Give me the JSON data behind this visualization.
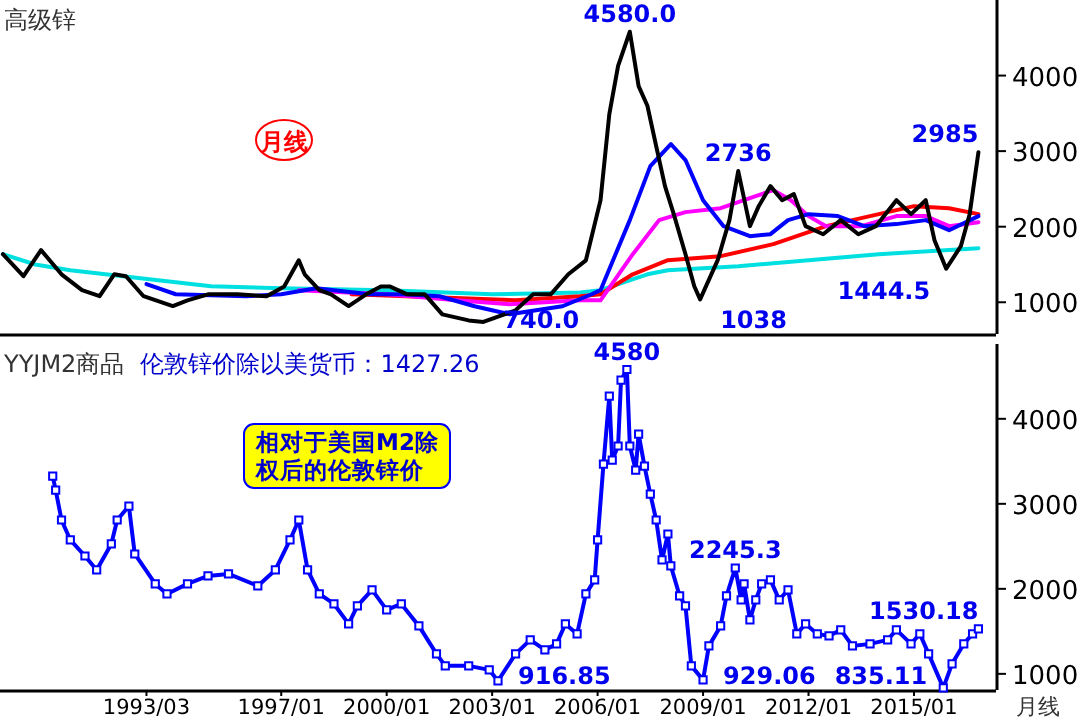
{
  "chart_data": [
    {
      "type": "line",
      "title": "高级锌",
      "xlim": [
        "1989-01",
        "2017-05"
      ],
      "ylim": [
        580,
        5000
      ],
      "yticks": [
        1000,
        2000,
        3000,
        4000
      ],
      "tick_labels": "y",
      "series": [
        {
          "color": "#00e0e0",
          "x": [
            "1989-02",
            "1990-01",
            "1991-01",
            "1992-01",
            "1993-01",
            "1995-01",
            "1997-01",
            "2000-01",
            "2003-01",
            "2005-07",
            "2006-02",
            "2007-06",
            "2008-01",
            "2010-01",
            "2012-01",
            "2014-01",
            "2016-11"
          ],
          "values": [
            1636,
            1500,
            1424,
            1370,
            1318,
            1212,
            1185,
            1160,
            1105,
            1130,
            1160,
            1370,
            1424,
            1477,
            1557,
            1636,
            1715
          ]
        },
        {
          "color": "#ff0000",
          "x": [
            "1999-01",
            "2003-09",
            "2005-07",
            "2006-02",
            "2007-01",
            "2008-01",
            "2009-07",
            "2011-01",
            "2012-07",
            "2014-01",
            "2015-01",
            "2016-01",
            "2016-11"
          ],
          "values": [
            1106,
            1026,
            1080,
            1106,
            1370,
            1557,
            1610,
            1770,
            2007,
            2166,
            2272,
            2245,
            2166
          ]
        },
        {
          "color": "#ff00ff",
          "x": [
            "1997-07",
            "2000-01",
            "2002-01",
            "2003-07",
            "2005-07",
            "2006-02",
            "2007-01",
            "2007-10",
            "2008-07",
            "2009-07",
            "2010-07",
            "2011-01",
            "2011-07",
            "2012-01",
            "2012-07",
            "2013-07",
            "2014-07",
            "2015-05",
            "2016-01",
            "2016-11"
          ],
          "values": [
            1160,
            1106,
            1026,
            973,
            1026,
            1026,
            1636,
            2087,
            2193,
            2245,
            2405,
            2484,
            2351,
            2140,
            2007,
            2007,
            2140,
            2140,
            2007,
            2060
          ]
        },
        {
          "color": "#0000ff",
          "x": [
            "1993-03",
            "1994-01",
            "1996-01",
            "1997-01",
            "1998-01",
            "1999-07",
            "2000-07",
            "2001-07",
            "2002-07",
            "2003-07",
            "2005-01",
            "2005-11",
            "2006-02",
            "2006-12",
            "2007-07",
            "2008-02",
            "2008-07",
            "2009-01",
            "2009-08",
            "2010-05",
            "2010-12",
            "2011-06",
            "2012-01",
            "2012-11",
            "2013-08",
            "2014-07",
            "2015-05",
            "2016-01",
            "2016-11"
          ],
          "values": [
            1240,
            1106,
            1080,
            1106,
            1185,
            1106,
            1106,
            1080,
            947,
            841,
            947,
            1106,
            1160,
            2087,
            2802,
            3094,
            2882,
            2351,
            2007,
            1875,
            1901,
            2087,
            2166,
            2140,
            2007,
            2034,
            2087,
            1954,
            2140
          ]
        },
        {
          "color": "#000000",
          "x": [
            "1989-02",
            "1989-09",
            "1990-03",
            "1990-10",
            "1991-05",
            "1991-11",
            "1992-04",
            "1992-08",
            "1993-02",
            "1993-12",
            "1994-05",
            "1994-12",
            "1995-10",
            "1996-08",
            "1997-02",
            "1997-07",
            "1997-09",
            "1998-02",
            "1998-06",
            "1998-12",
            "1999-06",
            "1999-11",
            "2000-02",
            "2000-08",
            "2001-02",
            "2001-08",
            "2002-05",
            "2002-10",
            "2003-09",
            "2004-03",
            "2004-09",
            "2005-03",
            "2005-09",
            "2006-02",
            "2006-05",
            "2006-08",
            "2006-12",
            "2007-03",
            "2007-06",
            "2007-09",
            "2007-12",
            "2008-03",
            "2008-07",
            "2008-10",
            "2008-12",
            "2009-06",
            "2009-10",
            "2010-01",
            "2010-05",
            "2010-08",
            "2010-12",
            "2011-04",
            "2011-08",
            "2011-12",
            "2012-06",
            "2012-12",
            "2013-06",
            "2013-12",
            "2014-07",
            "2014-12",
            "2015-05",
            "2015-08",
            "2015-12",
            "2016-05",
            "2016-08",
            "2016-11"
          ],
          "values": [
            1636,
            1345,
            1690,
            1370,
            1160,
            1080,
            1370,
            1345,
            1080,
            950,
            1025,
            1105,
            1105,
            1080,
            1210,
            1555,
            1370,
            1160,
            1105,
            950,
            1105,
            1210,
            1210,
            1105,
            1105,
            840,
            760,
            740,
            894,
            1105,
            1105,
            1370,
            1555,
            2351,
            3490,
            4127,
            4580,
            3860,
            3600,
            3067,
            2537,
            2166,
            1636,
            1212,
            1038,
            1557,
            2087,
            2736,
            2007,
            2272,
            2537,
            2351,
            2431,
            2007,
            1900,
            2087,
            1900,
            2007,
            2351,
            2166,
            2351,
            1822,
            1444.5,
            1742,
            2166,
            2985
          ]
        }
      ],
      "annotations": [
        "月线",
        {
          "text": "4580.0",
          "x": "2006-12",
          "y": 4580
        },
        {
          "text": "2736",
          "x": "2010-01",
          "y": 2736
        },
        {
          "text": "2985",
          "x": "2016-11",
          "y": 2985
        },
        {
          "text": "1038",
          "x": "2008-12",
          "y": 1038
        },
        {
          "text": "1444.5",
          "x": "2015-12",
          "y": 1444.5
        },
        {
          "text": "740.0",
          "x": "2002-10",
          "y": 740
        }
      ]
    },
    {
      "type": "line",
      "title": "YYJM2商品",
      "subtitle": "伦敦锌价除以美货币：1427.26",
      "xlabel": "月线",
      "xlim": [
        "1989-01",
        "2017-05"
      ],
      "ylim": [
        810,
        4880
      ],
      "yticks": [
        1000,
        2000,
        3000,
        4000
      ],
      "marker": "square",
      "xticks": [
        {
          "value": "1993-03",
          "label": "1993/03"
        },
        {
          "value": "1997-01",
          "label": "1997/01"
        },
        {
          "value": "2000-01",
          "label": "2000/01"
        },
        {
          "value": "2003-01",
          "label": "2003/01"
        },
        {
          "value": "2006-01",
          "label": "2006/01"
        },
        {
          "value": "2009-01",
          "label": "2009/01"
        },
        {
          "value": "2012-01",
          "label": "2012/01"
        },
        {
          "value": "2015-01",
          "label": "2015/01"
        }
      ],
      "series": [
        {
          "color": "#0000ff",
          "x": [
            "1990-07",
            "1990-08",
            "1990-10",
            "1991-01",
            "1991-06",
            "1991-10",
            "1992-03",
            "1992-05",
            "1992-09",
            "1992-11",
            "1993-06",
            "1993-10",
            "1994-05",
            "1994-12",
            "1995-07",
            "1996-05",
            "1996-11",
            "1997-04",
            "1997-07",
            "1997-10",
            "1998-02",
            "1998-07",
            "1998-12",
            "1999-03",
            "1999-08",
            "2000-01",
            "2000-06",
            "2000-12",
            "2001-06",
            "2001-09",
            "2002-05",
            "2002-12",
            "2003-03",
            "2003-09",
            "2004-02",
            "2004-07",
            "2004-11",
            "2005-02",
            "2005-06",
            "2005-09",
            "2005-12",
            "2006-01",
            "2006-03",
            "2006-05",
            "2006-06",
            "2006-08",
            "2006-09",
            "2006-11",
            "2006-12",
            "2007-02",
            "2007-03",
            "2007-05",
            "2007-07",
            "2007-09",
            "2007-11",
            "2008-01",
            "2008-02",
            "2008-05",
            "2008-07",
            "2008-09",
            "2009-01",
            "2009-03",
            "2009-07",
            "2009-09",
            "2009-12",
            "2010-02",
            "2010-03",
            "2010-05",
            "2010-07",
            "2010-09",
            "2010-12",
            "2011-03",
            "2011-06",
            "2011-09",
            "2011-12",
            "2012-04",
            "2012-08",
            "2012-12",
            "2013-04",
            "2013-10",
            "2014-04",
            "2014-07",
            "2014-12",
            "2015-03",
            "2015-06",
            "2015-11",
            "2016-02",
            "2016-06",
            "2016-09",
            "2016-11"
          ],
          "values": [
            3326,
            3162,
            2810,
            2575,
            2386,
            2222,
            2528,
            2810,
            2974,
            2410,
            2058,
            1940,
            2058,
            2152,
            2175,
            2034,
            2222,
            2575,
            2810,
            2222,
            1940,
            1822,
            1587,
            1799,
            1987,
            1752,
            1822,
            1564,
            1235,
            1094,
            1094,
            1047,
            916.85,
            1235,
            1400,
            1282,
            1352,
            1587,
            1470,
            1940,
            2105,
            2575,
            3468,
            4267,
            3515,
            3680,
            4455,
            4580,
            3680,
            3397,
            3820,
            3444,
            3115,
            2810,
            2340,
            2645,
            2269,
            1917,
            1799,
            1094,
            929.06,
            1329,
            1564,
            1917,
            2245.3,
            1870,
            2058,
            1634,
            1870,
            2058,
            2105,
            1870,
            1987,
            1470,
            1587,
            1470,
            1446,
            1517,
            1329,
            1352,
            1400,
            1517,
            1352,
            1470,
            1235,
            835.11,
            1118,
            1352,
            1470,
            1530.18
          ]
        }
      ],
      "annotations": [
        "相对于美国M2除权后的伦敦锌价",
        {
          "text": "4580",
          "x": "2006-11",
          "y": 4580
        },
        {
          "text": "2245.3",
          "x": "2009-12",
          "y": 2245.3
        },
        {
          "text": "916.85",
          "x": "2003-03",
          "y": 916.85
        },
        {
          "text": "929.06",
          "x": "2009-01",
          "y": 929.06
        },
        {
          "text": "835.11",
          "x": "2015-11",
          "y": 835.11
        },
        {
          "text": "1530.18",
          "x": "2016-11",
          "y": 1530.18
        }
      ]
    }
  ]
}
